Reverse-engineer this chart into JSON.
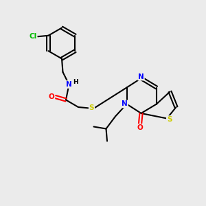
{
  "bg_color": "#ebebeb",
  "bond_color": "#000000",
  "atom_colors": {
    "N": "#0000ff",
    "O": "#ff0000",
    "S_thio": "#cccc00",
    "S_link": "#cccc00",
    "Cl": "#00bb00",
    "H": "#000000",
    "C": "#000000"
  }
}
